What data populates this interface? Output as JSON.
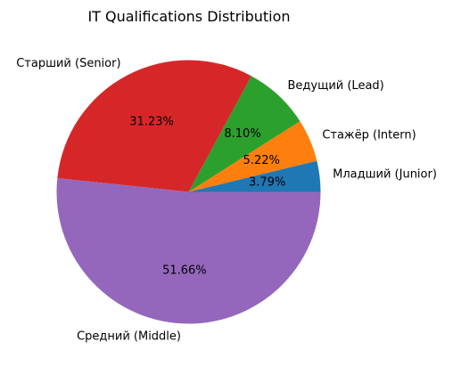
{
  "chart_data": {
    "type": "pie",
    "title": "IT Qualifications Distribution",
    "start_angle_deg": 0,
    "direction": "counterclockwise",
    "slices": [
      {
        "label": "Младший (Junior)",
        "value": 3.79,
        "pct_label": "3.79%",
        "color": "#1f77b4"
      },
      {
        "label": "Стажёр (Intern)",
        "value": 5.22,
        "pct_label": "5.22%",
        "color": "#ff7f0e"
      },
      {
        "label": "Ведущий (Lead)",
        "value": 8.1,
        "pct_label": "8.10%",
        "color": "#2ca02c"
      },
      {
        "label": "Старший (Senior)",
        "value": 31.23,
        "pct_label": "31.23%",
        "color": "#d62728"
      },
      {
        "label": "Средний (Middle)",
        "value": 51.66,
        "pct_label": "51.66%",
        "color": "#9467bd"
      }
    ]
  }
}
